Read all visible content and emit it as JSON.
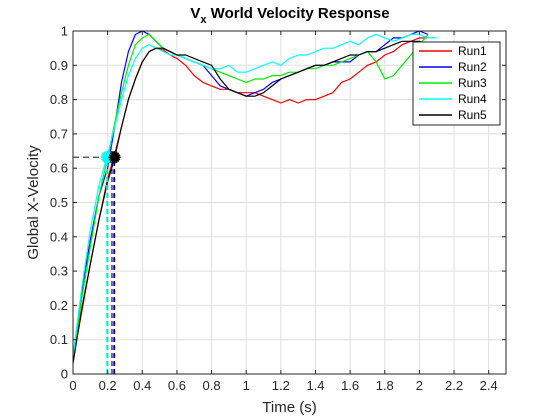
{
  "chart_data": {
    "type": "line",
    "title_main": "V",
    "title_sub": "x",
    "title_rest": " World Velocity Response",
    "xlabel": "Time (s)",
    "ylabel": "Global X-Velocity",
    "xlim": [
      0,
      2.5
    ],
    "ylim": [
      0,
      1
    ],
    "xticks": [
      0,
      0.2,
      0.4,
      0.6,
      0.8,
      1,
      1.2,
      1.4,
      1.6,
      1.8,
      2,
      2.2,
      2.4
    ],
    "xtick_labels": [
      "0",
      "0.2",
      "0.4",
      "0.6",
      "0.8",
      "1",
      "1.2",
      "1.4",
      "1.6",
      "1.8",
      "2",
      "2.2",
      "2.4"
    ],
    "yticks": [
      0,
      0.1,
      0.2,
      0.3,
      0.4,
      0.5,
      0.6,
      0.7,
      0.8,
      0.9,
      1
    ],
    "ytick_labels": [
      "0",
      "0.1",
      "0.2",
      "0.3",
      "0.4",
      "0.5",
      "0.6",
      "0.7",
      "0.8",
      "0.9",
      "1"
    ],
    "grid": true,
    "legend_position": "top-right",
    "reference_level": 0.632,
    "series": [
      {
        "name": "Run1",
        "color": "#ff0000",
        "rise_time": 0.235,
        "x": [
          0,
          0.05,
          0.1,
          0.15,
          0.2,
          0.24,
          0.28,
          0.32,
          0.36,
          0.4,
          0.44,
          0.48,
          0.52,
          0.56,
          0.6,
          0.65,
          0.7,
          0.75,
          0.8,
          0.85,
          0.9,
          0.95,
          1.0,
          1.05,
          1.1,
          1.15,
          1.2,
          1.25,
          1.3,
          1.35,
          1.4,
          1.45,
          1.5,
          1.55,
          1.6,
          1.65,
          1.7,
          1.75,
          1.8,
          1.85,
          1.9,
          1.95,
          2.0,
          2.05
        ],
        "y": [
          0.04,
          0.18,
          0.32,
          0.45,
          0.57,
          0.64,
          0.72,
          0.8,
          0.86,
          0.91,
          0.94,
          0.95,
          0.945,
          0.93,
          0.92,
          0.9,
          0.87,
          0.85,
          0.84,
          0.83,
          0.83,
          0.82,
          0.82,
          0.82,
          0.81,
          0.8,
          0.79,
          0.8,
          0.79,
          0.8,
          0.8,
          0.81,
          0.82,
          0.85,
          0.86,
          0.88,
          0.9,
          0.91,
          0.93,
          0.94,
          0.96,
          0.97,
          0.98,
          0.98
        ]
      },
      {
        "name": "Run2",
        "color": "#0000ff",
        "rise_time": 0.225,
        "x": [
          0,
          0.05,
          0.1,
          0.15,
          0.2,
          0.24,
          0.28,
          0.32,
          0.36,
          0.4,
          0.44,
          0.48,
          0.52,
          0.56,
          0.6,
          0.65,
          0.7,
          0.75,
          0.8,
          0.85,
          0.9,
          0.95,
          1.0,
          1.05,
          1.1,
          1.15,
          1.2,
          1.25,
          1.3,
          1.35,
          1.4,
          1.45,
          1.5,
          1.55,
          1.6,
          1.65,
          1.7,
          1.75,
          1.8,
          1.85,
          1.9,
          1.95,
          2.0,
          2.05
        ],
        "y": [
          0.05,
          0.24,
          0.39,
          0.52,
          0.6,
          0.72,
          0.85,
          0.94,
          0.99,
          1.0,
          0.99,
          0.97,
          0.95,
          0.94,
          0.93,
          0.92,
          0.91,
          0.9,
          0.87,
          0.84,
          0.83,
          0.82,
          0.81,
          0.82,
          0.83,
          0.85,
          0.86,
          0.87,
          0.88,
          0.89,
          0.9,
          0.9,
          0.91,
          0.91,
          0.91,
          0.93,
          0.94,
          0.94,
          0.96,
          0.98,
          0.98,
          0.99,
          1.0,
          0.99
        ]
      },
      {
        "name": "Run3",
        "color": "#00ee00",
        "rise_time": 0.2,
        "x": [
          0,
          0.05,
          0.1,
          0.15,
          0.2,
          0.24,
          0.28,
          0.32,
          0.36,
          0.4,
          0.44,
          0.48,
          0.52,
          0.56,
          0.6,
          0.65,
          0.7,
          0.75,
          0.8,
          0.85,
          0.9,
          0.95,
          1.0,
          1.05,
          1.1,
          1.15,
          1.2,
          1.25,
          1.3,
          1.35,
          1.4,
          1.45,
          1.5,
          1.55,
          1.6,
          1.65,
          1.7,
          1.75,
          1.8,
          1.85,
          1.9,
          1.95,
          2.0,
          2.05
        ],
        "y": [
          0.04,
          0.22,
          0.37,
          0.52,
          0.63,
          0.73,
          0.82,
          0.9,
          0.96,
          0.98,
          0.99,
          0.97,
          0.95,
          0.94,
          0.93,
          0.92,
          0.91,
          0.9,
          0.89,
          0.88,
          0.87,
          0.86,
          0.85,
          0.86,
          0.86,
          0.87,
          0.87,
          0.88,
          0.88,
          0.89,
          0.89,
          0.9,
          0.9,
          0.91,
          0.92,
          0.93,
          0.94,
          0.91,
          0.86,
          0.87,
          0.9,
          0.93,
          0.96,
          0.99
        ]
      },
      {
        "name": "Run4",
        "color": "#00ffff",
        "rise_time": 0.195,
        "x": [
          0,
          0.05,
          0.1,
          0.15,
          0.2,
          0.24,
          0.28,
          0.32,
          0.36,
          0.4,
          0.44,
          0.48,
          0.52,
          0.56,
          0.6,
          0.65,
          0.7,
          0.75,
          0.8,
          0.85,
          0.9,
          0.95,
          1.0,
          1.05,
          1.1,
          1.15,
          1.2,
          1.25,
          1.3,
          1.35,
          1.4,
          1.45,
          1.5,
          1.55,
          1.6,
          1.65,
          1.7,
          1.75,
          1.8,
          1.85,
          1.9,
          1.95,
          2.0,
          2.05,
          2.1
        ],
        "y": [
          0.05,
          0.25,
          0.42,
          0.55,
          0.64,
          0.72,
          0.8,
          0.87,
          0.92,
          0.95,
          0.96,
          0.95,
          0.94,
          0.93,
          0.93,
          0.92,
          0.91,
          0.9,
          0.89,
          0.89,
          0.9,
          0.88,
          0.88,
          0.89,
          0.9,
          0.91,
          0.9,
          0.92,
          0.93,
          0.93,
          0.94,
          0.95,
          0.95,
          0.96,
          0.97,
          0.96,
          0.98,
          0.99,
          0.98,
          0.97,
          0.98,
          0.99,
          0.99,
          0.98,
          0.98
        ]
      },
      {
        "name": "Run5",
        "color": "#000000",
        "rise_time": 0.24,
        "x": [
          0,
          0.05,
          0.1,
          0.15,
          0.2,
          0.24,
          0.28,
          0.32,
          0.36,
          0.4,
          0.44,
          0.48,
          0.52,
          0.56,
          0.6,
          0.65,
          0.7,
          0.75,
          0.8,
          0.85,
          0.9,
          0.95,
          1.0,
          1.05,
          1.1,
          1.15,
          1.2,
          1.25,
          1.3,
          1.35,
          1.4,
          1.45,
          1.5,
          1.55,
          1.6,
          1.65,
          1.7,
          1.75,
          1.8,
          1.85,
          1.9,
          1.95,
          2.0,
          2.05
        ],
        "y": [
          0.03,
          0.19,
          0.32,
          0.45,
          0.56,
          0.63,
          0.72,
          0.8,
          0.86,
          0.91,
          0.94,
          0.95,
          0.95,
          0.94,
          0.93,
          0.93,
          0.92,
          0.91,
          0.9,
          0.86,
          0.83,
          0.82,
          0.81,
          0.81,
          0.82,
          0.84,
          0.86,
          0.87,
          0.88,
          0.89,
          0.9,
          0.9,
          0.91,
          0.92,
          0.93,
          0.93,
          0.94,
          0.94,
          0.95,
          0.96,
          0.97,
          0.97,
          0.97,
          0.96
        ]
      }
    ]
  }
}
